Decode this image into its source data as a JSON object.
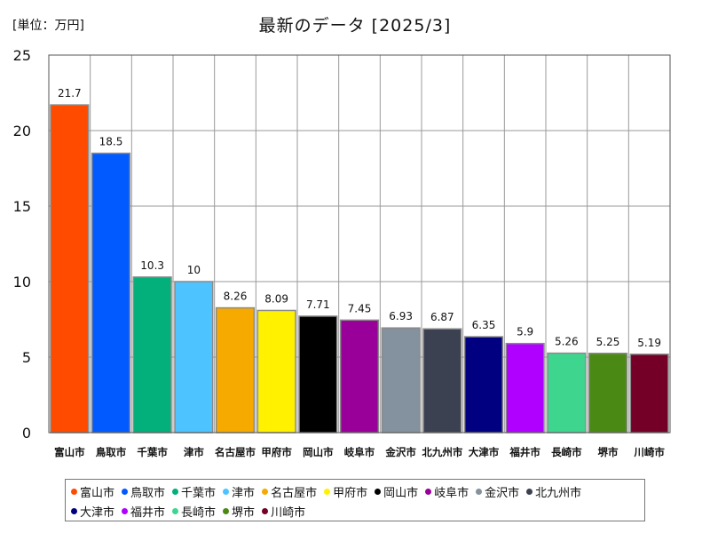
{
  "unit_label": "[単位：万円]",
  "chart_data": {
    "type": "bar",
    "title": "最新のデータ [2025/3]",
    "categories": [
      "富山市",
      "鳥取市",
      "千葉市",
      "津市",
      "名古屋市",
      "甲府市",
      "岡山市",
      "岐阜市",
      "金沢市",
      "北九州市",
      "大津市",
      "福井市",
      "長崎市",
      "堺市",
      "川崎市"
    ],
    "values": [
      21.7,
      18.5,
      10.3,
      10,
      8.26,
      8.09,
      7.71,
      7.45,
      6.93,
      6.87,
      6.35,
      5.9,
      5.26,
      5.25,
      5.19
    ],
    "value_labels": [
      "21.7",
      "18.5",
      "10.3",
      "10",
      "8.26",
      "8.09",
      "7.71",
      "7.45",
      "6.93",
      "6.87",
      "6.35",
      "5.9",
      "5.26",
      "5.25",
      "5.19"
    ],
    "colors": [
      "#ff4b00",
      "#005aff",
      "#03af7a",
      "#4dc4ff",
      "#f6aa00",
      "#fff100",
      "#000000",
      "#990099",
      "#84919e",
      "#3c4152",
      "#000080",
      "#b000ff",
      "#3ed68f",
      "#4a8a14",
      "#740027"
    ],
    "ylim": [
      0,
      25
    ],
    "yticks": [
      "0",
      "5",
      "10",
      "15",
      "20",
      "25"
    ],
    "grid": true,
    "legend_position": "bottom"
  }
}
